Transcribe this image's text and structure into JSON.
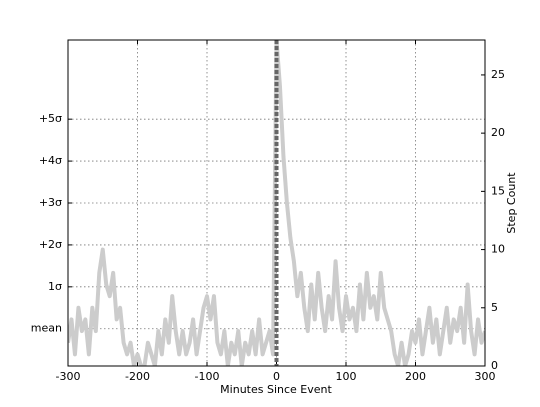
{
  "chart_data": {
    "type": "line",
    "xlabel": "Minutes Since Event",
    "y2label": "Step Count",
    "xlim": [
      -300,
      300
    ],
    "xticks": [
      -300,
      -200,
      -100,
      0,
      100,
      200,
      300
    ],
    "ylim": [
      0,
      28
    ],
    "yticks": [
      {
        "value": 3.2,
        "label": "mean"
      },
      {
        "value": 6.8,
        "label": "1σ"
      },
      {
        "value": 10.4,
        "label": "+2σ"
      },
      {
        "value": 14.0,
        "label": "+3σ"
      },
      {
        "value": 17.6,
        "label": "+4σ"
      },
      {
        "value": 21.2,
        "label": "+5σ"
      }
    ],
    "y2lim": [
      0,
      28
    ],
    "y2ticks": [
      0,
      5,
      10,
      15,
      20,
      25
    ],
    "grid": true,
    "vline": 0,
    "vline_color": "#666666",
    "x": [
      -300,
      -295,
      -290,
      -285,
      -280,
      -275,
      -270,
      -265,
      -260,
      -255,
      -250,
      -245,
      -240,
      -235,
      -230,
      -225,
      -220,
      -215,
      -210,
      -205,
      -200,
      -195,
      -190,
      -185,
      -180,
      -175,
      -170,
      -165,
      -160,
      -155,
      -150,
      -145,
      -140,
      -135,
      -130,
      -125,
      -120,
      -115,
      -110,
      -105,
      -100,
      -95,
      -90,
      -85,
      -80,
      -75,
      -70,
      -65,
      -60,
      -55,
      -50,
      -45,
      -40,
      -35,
      -30,
      -25,
      -20,
      -15,
      -10,
      -5,
      0,
      5,
      10,
      15,
      20,
      25,
      30,
      35,
      40,
      45,
      50,
      55,
      60,
      65,
      70,
      75,
      80,
      85,
      90,
      95,
      100,
      105,
      110,
      115,
      120,
      125,
      130,
      135,
      140,
      145,
      150,
      155,
      160,
      165,
      170,
      175,
      180,
      185,
      190,
      195,
      200,
      205,
      210,
      215,
      220,
      225,
      230,
      235,
      240,
      245,
      250,
      255,
      260,
      265,
      270,
      275,
      280,
      285,
      290,
      295,
      300
    ],
    "series": [
      {
        "color": "#cccccc",
        "axis": "y2",
        "values": [
          2,
          4,
          1,
          5,
          3,
          4,
          1,
          5,
          3,
          8,
          10,
          7,
          6,
          8,
          4,
          5,
          2,
          1,
          2,
          0,
          1,
          0,
          0,
          2,
          1,
          0,
          3,
          1,
          4,
          2,
          6,
          3,
          1,
          3,
          1,
          2,
          4,
          1,
          3,
          5,
          6,
          4,
          6,
          2,
          1,
          3,
          0,
          2,
          1,
          3,
          0,
          2,
          1,
          3,
          1,
          4,
          1,
          2,
          3,
          1,
          28,
          24,
          18,
          14,
          11,
          9,
          6,
          8,
          5,
          3,
          7,
          4,
          8,
          5,
          3,
          6,
          4,
          9,
          5,
          3,
          6,
          4,
          5,
          3,
          7,
          4,
          8,
          5,
          6,
          4,
          8,
          5,
          4,
          3,
          1,
          0,
          2,
          0,
          1,
          3,
          2,
          4,
          1,
          3,
          5,
          2,
          4,
          1,
          3,
          5,
          2,
          4,
          3,
          5,
          2,
          7,
          3,
          1,
          4,
          2,
          3
        ]
      }
    ]
  }
}
